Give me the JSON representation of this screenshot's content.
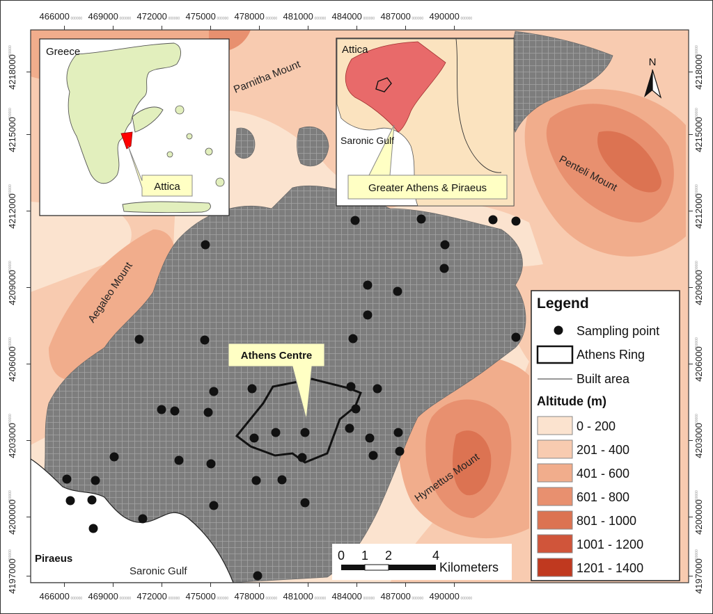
{
  "x_ticks": [
    {
      "label": "466000",
      "sub": "000000"
    },
    {
      "label": "469000",
      "sub": "000000"
    },
    {
      "label": "472000",
      "sub": "000000"
    },
    {
      "label": "475000",
      "sub": "000000"
    },
    {
      "label": "478000",
      "sub": "000000"
    },
    {
      "label": "481000",
      "sub": "000000"
    },
    {
      "label": "484000",
      "sub": "000000"
    },
    {
      "label": "487000",
      "sub": "000000"
    },
    {
      "label": "490000",
      "sub": "000000"
    }
  ],
  "y_ticks": [
    {
      "label": "4218000",
      "sub": "000000"
    },
    {
      "label": "4215000",
      "sub": "000000"
    },
    {
      "label": "4212000",
      "sub": "000000"
    },
    {
      "label": "4209000",
      "sub": "000000"
    },
    {
      "label": "4206000",
      "sub": "000000"
    },
    {
      "label": "4203000",
      "sub": "000000"
    },
    {
      "label": "4200000",
      "sub": "000000"
    },
    {
      "label": "4197000",
      "sub": "000000"
    }
  ],
  "place_labels": {
    "parnitha": "Parnitha Mount",
    "penteli": "Penteli Mount",
    "aegaleo": "Aegaleo Mount",
    "hymettus": "Hymettus Mount",
    "piraeus": "Piraeus",
    "saronic_gulf": "Saronic Gulf"
  },
  "callout_athens_centre": "Athens Centre",
  "north_arrow": "N",
  "inset_greece": {
    "title": "Greece",
    "callout": "Attica"
  },
  "inset_attica": {
    "title": "Attica",
    "sea": "Saronic Gulf",
    "callout": "Greater Athens & Piraeus"
  },
  "legend": {
    "title": "Legend",
    "items": [
      {
        "label": "Sampling point",
        "symbol": "dot"
      },
      {
        "label": "Athens Ring",
        "symbol": "ring"
      },
      {
        "label": "Built area",
        "symbol": "line"
      }
    ],
    "altitude_title": "Altitude (m)",
    "altitude_classes": [
      {
        "label": "0 - 200",
        "color": "#fbe3cf"
      },
      {
        "label": "201 - 400",
        "color": "#f8cbb0"
      },
      {
        "label": "401 - 600",
        "color": "#f1ad8c"
      },
      {
        "label": "601 - 800",
        "color": "#e8906f"
      },
      {
        "label": "801 - 1000",
        "color": "#dc7352"
      },
      {
        "label": "1001 - 1200",
        "color": "#d0553a"
      },
      {
        "label": "1201 - 1400",
        "color": "#c0391f"
      }
    ]
  },
  "scale_bar": {
    "labels": [
      "0",
      "1",
      "2",
      "4"
    ],
    "unit": "Kilometers"
  },
  "colors": {
    "built": "#7d7d7d",
    "sea": "#ffffff",
    "greece_land": "#e2efbd",
    "attica_land": "#fbe3bf",
    "highlight": "#e86a6a",
    "callout_fill": "#ffffc4"
  }
}
